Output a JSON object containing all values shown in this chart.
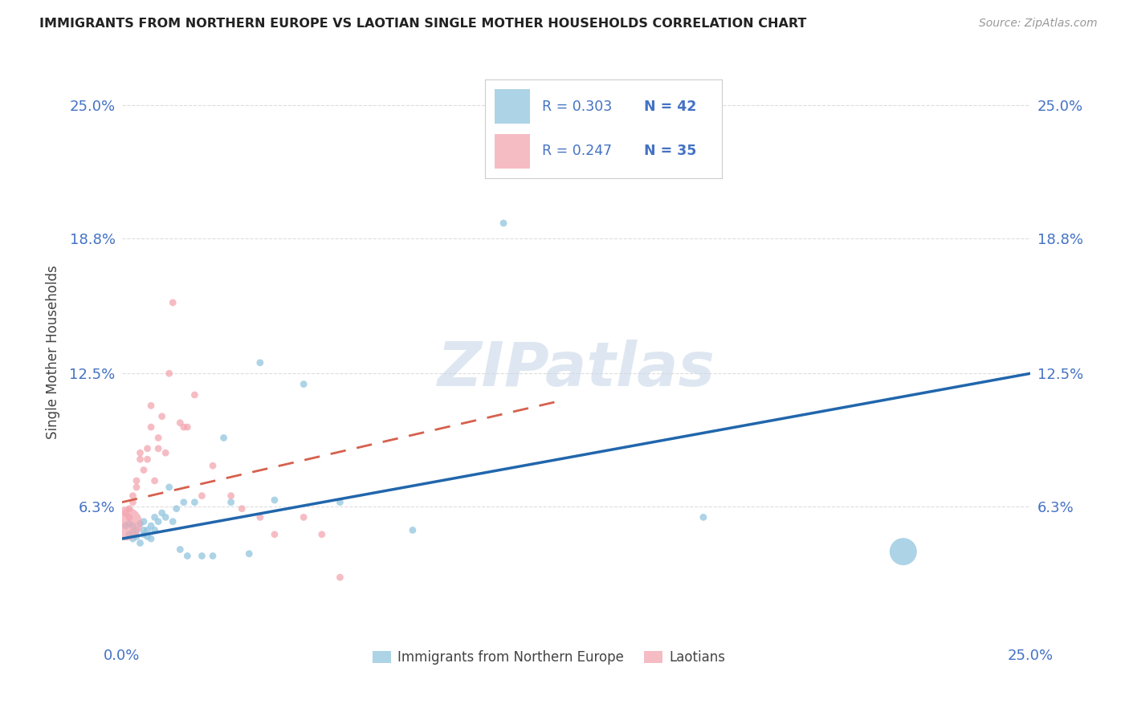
{
  "title": "IMMIGRANTS FROM NORTHERN EUROPE VS LAOTIAN SINGLE MOTHER HOUSEHOLDS CORRELATION CHART",
  "source": "Source: ZipAtlas.com",
  "ylabel": "Single Mother Households",
  "xlim": [
    0.0,
    0.25
  ],
  "ylim": [
    0.0,
    0.27
  ],
  "xtick_vals": [
    0.0,
    0.25
  ],
  "xtick_labels": [
    "0.0%",
    "25.0%"
  ],
  "ytick_vals": [
    0.063,
    0.125,
    0.188,
    0.25
  ],
  "ytick_labels": [
    "6.3%",
    "12.5%",
    "18.8%",
    "25.0%"
  ],
  "legend_r1": "R = 0.303",
  "legend_n1": "N = 42",
  "legend_r2": "R = 0.247",
  "legend_n2": "N = 35",
  "blue_color": "#92c5de",
  "pink_color": "#f4a6b0",
  "blue_line_color": "#2166ac",
  "pink_line_color": "#d6604d",
  "watermark": "ZIPatlas",
  "blue_scatter_x": [
    0.001,
    0.002,
    0.002,
    0.003,
    0.003,
    0.003,
    0.004,
    0.004,
    0.005,
    0.005,
    0.006,
    0.006,
    0.006,
    0.007,
    0.007,
    0.008,
    0.008,
    0.009,
    0.009,
    0.01,
    0.011,
    0.012,
    0.013,
    0.014,
    0.015,
    0.016,
    0.017,
    0.018,
    0.02,
    0.022,
    0.025,
    0.028,
    0.03,
    0.035,
    0.038,
    0.042,
    0.05,
    0.06,
    0.08,
    0.105,
    0.16,
    0.215
  ],
  "blue_scatter_y": [
    0.054,
    0.05,
    0.055,
    0.048,
    0.051,
    0.054,
    0.049,
    0.052,
    0.046,
    0.055,
    0.05,
    0.052,
    0.056,
    0.049,
    0.052,
    0.048,
    0.054,
    0.058,
    0.052,
    0.056,
    0.06,
    0.058,
    0.072,
    0.056,
    0.062,
    0.043,
    0.065,
    0.04,
    0.065,
    0.04,
    0.04,
    0.095,
    0.065,
    0.041,
    0.13,
    0.066,
    0.12,
    0.065,
    0.052,
    0.195,
    0.058,
    0.042
  ],
  "blue_scatter_size": [
    40,
    40,
    40,
    40,
    40,
    40,
    40,
    40,
    40,
    40,
    40,
    40,
    40,
    40,
    40,
    40,
    40,
    40,
    40,
    40,
    40,
    40,
    40,
    40,
    40,
    40,
    40,
    40,
    40,
    40,
    40,
    40,
    40,
    40,
    40,
    40,
    40,
    40,
    40,
    40,
    40,
    600
  ],
  "pink_scatter_x": [
    0.001,
    0.001,
    0.002,
    0.002,
    0.003,
    0.003,
    0.004,
    0.004,
    0.005,
    0.005,
    0.006,
    0.007,
    0.007,
    0.008,
    0.008,
    0.009,
    0.01,
    0.01,
    0.011,
    0.012,
    0.013,
    0.014,
    0.016,
    0.017,
    0.018,
    0.02,
    0.022,
    0.025,
    0.03,
    0.033,
    0.038,
    0.042,
    0.05,
    0.055,
    0.06
  ],
  "pink_scatter_y": [
    0.06,
    0.055,
    0.058,
    0.062,
    0.068,
    0.065,
    0.072,
    0.075,
    0.088,
    0.085,
    0.08,
    0.09,
    0.085,
    0.11,
    0.1,
    0.075,
    0.095,
    0.09,
    0.105,
    0.088,
    0.125,
    0.158,
    0.102,
    0.1,
    0.1,
    0.115,
    0.068,
    0.082,
    0.068,
    0.062,
    0.058,
    0.05,
    0.058,
    0.05,
    0.03
  ],
  "pink_scatter_size": [
    40,
    900,
    40,
    40,
    40,
    40,
    40,
    40,
    40,
    40,
    40,
    40,
    40,
    40,
    40,
    40,
    40,
    40,
    40,
    40,
    40,
    40,
    40,
    40,
    40,
    40,
    40,
    40,
    40,
    40,
    40,
    40,
    40,
    40,
    40
  ],
  "blue_line_x": [
    0.0,
    0.25
  ],
  "blue_line_y": [
    0.048,
    0.125
  ],
  "pink_line_x": [
    0.0,
    0.12
  ],
  "pink_line_y": [
    0.065,
    0.112
  ],
  "background_color": "#ffffff",
  "grid_color": "#dddddd"
}
